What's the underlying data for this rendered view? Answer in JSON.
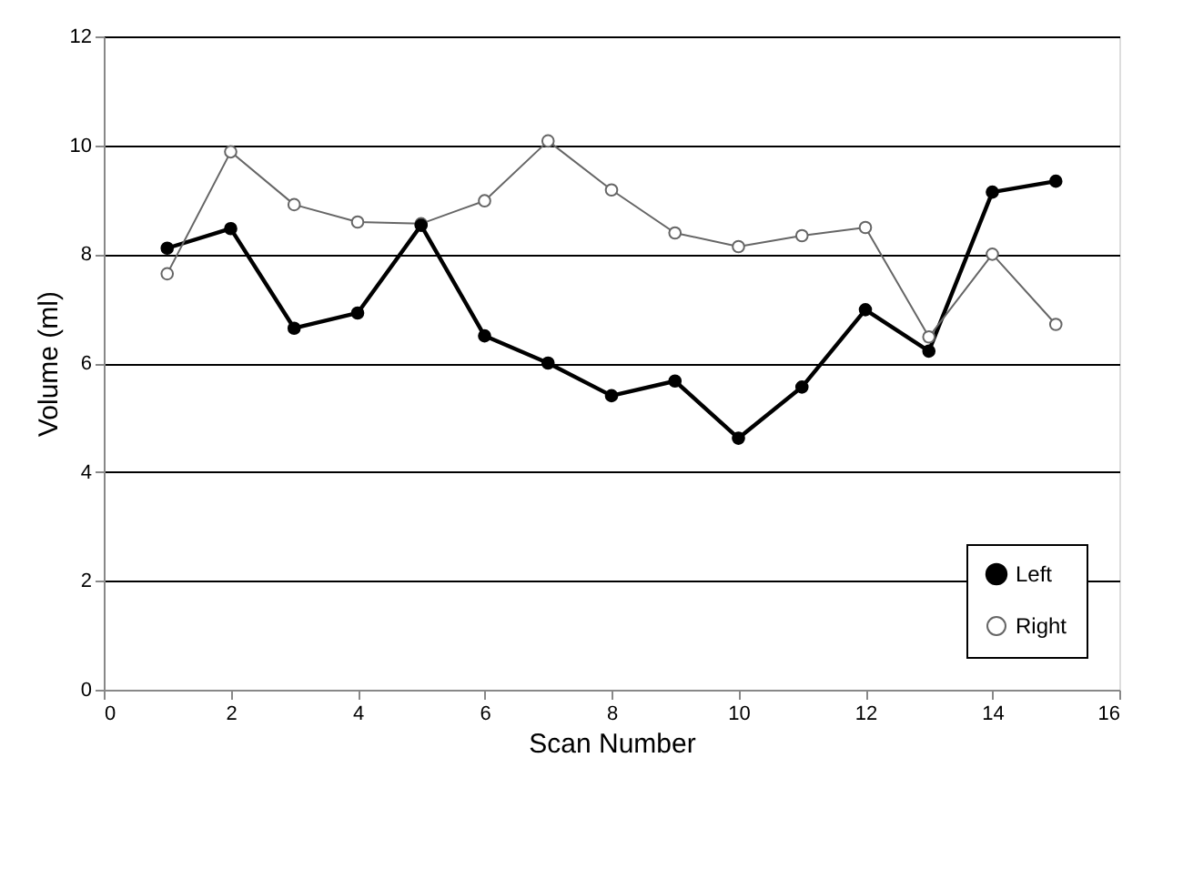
{
  "chart_data": {
    "type": "line",
    "xlabel": "Scan Number",
    "ylabel": "Volume (ml)",
    "x": [
      1,
      2,
      3,
      4,
      5,
      6,
      7,
      8,
      9,
      10,
      11,
      12,
      13,
      14,
      15
    ],
    "series": [
      {
        "name": "Left",
        "color": "#000000",
        "values": [
          8.11,
          8.47,
          6.64,
          6.92,
          8.53,
          6.5,
          6.0,
          5.4,
          5.67,
          4.62,
          5.56,
          6.98,
          6.22,
          9.14,
          9.34
        ]
      },
      {
        "name": "Right",
        "color": "#666666",
        "values": [
          7.64,
          9.88,
          8.91,
          8.59,
          8.56,
          8.98,
          10.08,
          9.18,
          8.39,
          8.14,
          8.34,
          8.49,
          6.48,
          8.0,
          6.71
        ]
      }
    ],
    "xlim": [
      0,
      16
    ],
    "xticks": [
      0,
      2,
      4,
      6,
      8,
      10,
      12,
      14,
      16
    ],
    "ylim": [
      0,
      12
    ],
    "yticks": [
      0,
      2,
      4,
      6,
      8,
      10,
      12
    ],
    "grid": "y",
    "legend": "bottom right",
    "marker": "circle",
    "line_style": "solid"
  }
}
